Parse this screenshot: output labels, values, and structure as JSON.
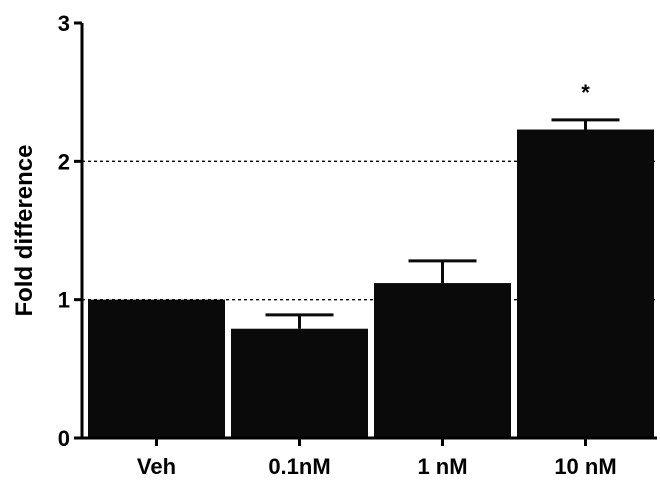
{
  "chart_data": {
    "type": "bar",
    "categories": [
      "Veh",
      "0.1nM",
      "1 nM",
      "10 nM"
    ],
    "values": [
      1.0,
      0.79,
      1.12,
      2.23
    ],
    "errors": [
      0.0,
      0.1,
      0.16,
      0.07
    ],
    "ylabel": "Fold difference",
    "xlabel": "",
    "ylim": [
      0,
      3
    ],
    "yticks": [
      "0",
      "1",
      "2",
      "3"
    ],
    "reference_lines": [
      1,
      2
    ],
    "annotations": [
      {
        "category": "10 nM",
        "text": "*"
      }
    ],
    "bar_color": "#0a0a0a",
    "grid": false
  }
}
